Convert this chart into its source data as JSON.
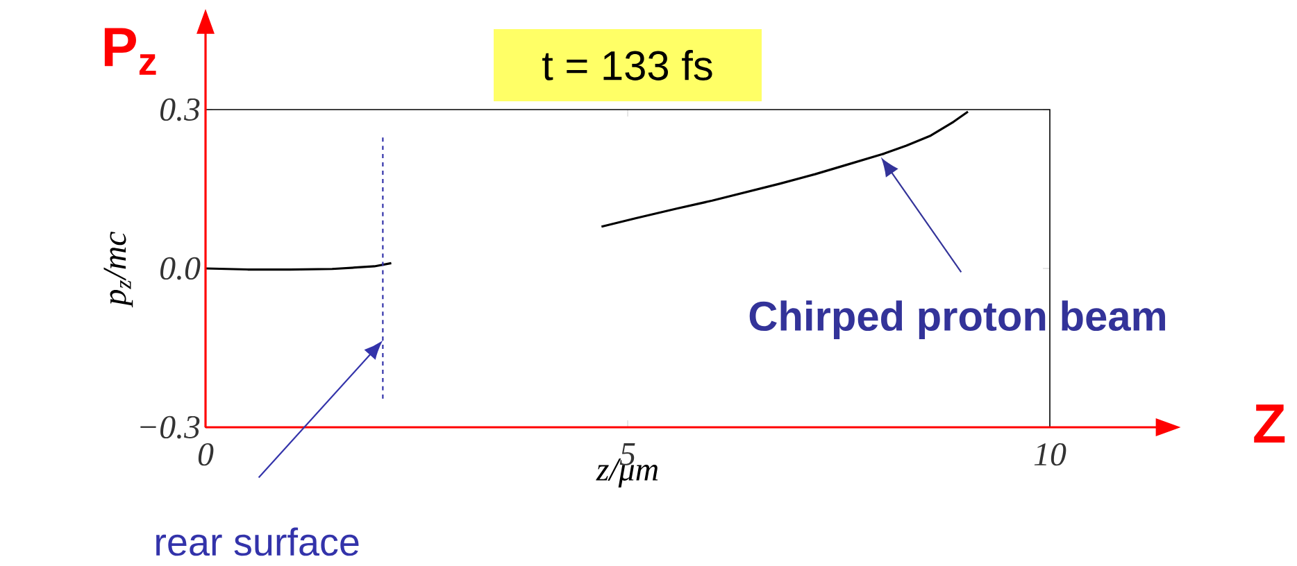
{
  "chart_data": {
    "type": "line",
    "title": "t = 133 fs",
    "xlabel": "z/μm",
    "ylabel": "p$_{z}$/mc",
    "xlim": [
      0,
      10
    ],
    "ylim": [
      -0.3,
      0.3
    ],
    "xticks": [
      0,
      5,
      10
    ],
    "yticks": [
      {
        "value": -0.3,
        "label": "−0.3"
      },
      {
        "value": 0,
        "label": "0.0"
      },
      0.3
    ],
    "series": [
      {
        "color": "#000000",
        "x": [
          0,
          0.5,
          1.0,
          1.5,
          2.0,
          2.2
        ],
        "values": [
          0,
          -0.002,
          -0.002,
          -0.001,
          0.004,
          0.01
        ]
      },
      {
        "color": "#000000",
        "x": [
          4.69,
          5.1,
          5.58,
          6.0,
          6.4,
          6.8,
          7.22,
          7.6,
          8.04,
          8.3,
          8.59,
          8.86,
          9.03
        ],
        "values": [
          0.079,
          0.095,
          0.113,
          0.128,
          0.144,
          0.16,
          0.178,
          0.196,
          0.217,
          0.232,
          0.251,
          0.277,
          0.296
        ]
      }
    ],
    "ref_lines": [
      {
        "axis": "x",
        "value": 2.1,
        "label": "rear surface",
        "color": "#3333aa",
        "line_style": "dashed"
      }
    ],
    "annotations": [
      "Chirped proton beam",
      "P$_{z}$",
      "Z"
    ],
    "grid": false,
    "marker": "none",
    "line_style": "solid"
  }
}
